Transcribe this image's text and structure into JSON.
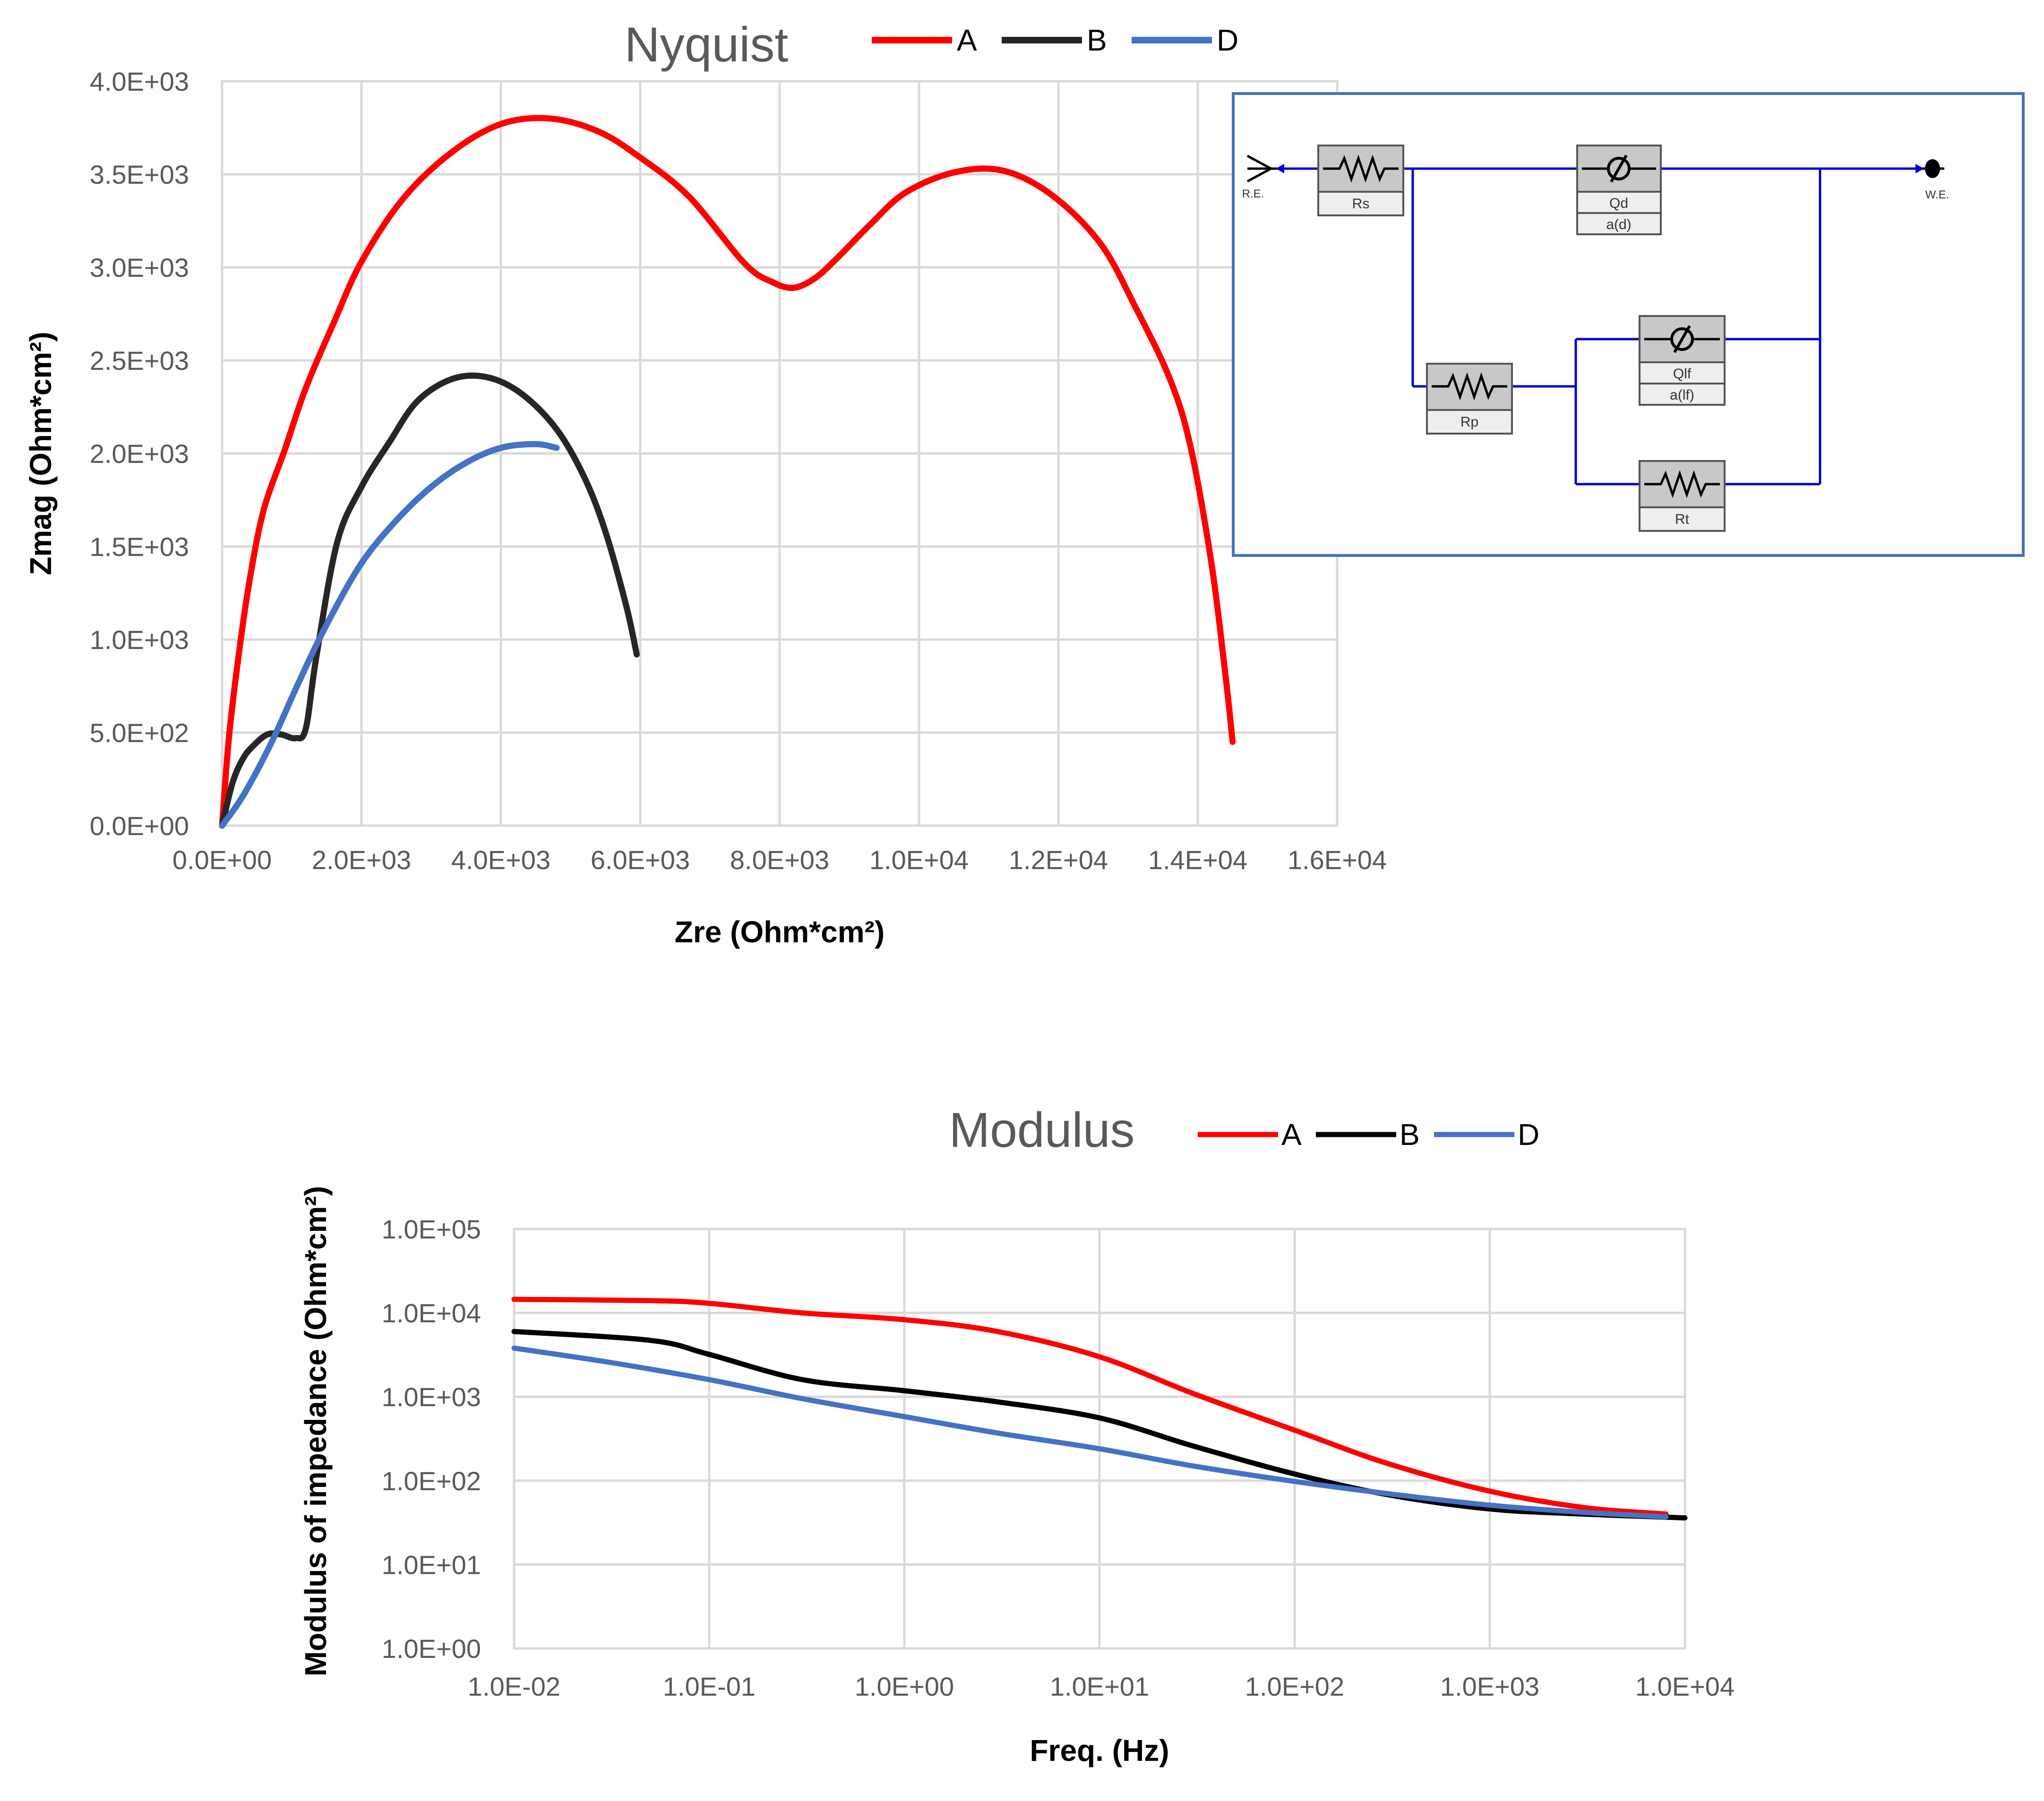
{
  "colors": {
    "A": "#ff0000",
    "B": "#262626",
    "B_modulus": "#000000",
    "D": "#4472c4",
    "circuit_wire": "#0000cc",
    "circuit_frame": "#4472c4"
  },
  "chart_data": [
    {
      "type": "line",
      "title": "Nyquist",
      "xlabel": "Zre (Ohm*cm²)",
      "ylabel": "Zmag (Ohm*cm²)",
      "xlim": [
        0,
        16000
      ],
      "ylim": [
        0,
        4000
      ],
      "x_ticks": [
        0,
        2000,
        4000,
        6000,
        8000,
        10000,
        12000,
        14000,
        16000
      ],
      "y_ticks": [
        0,
        500,
        1000,
        1500,
        2000,
        2500,
        3000,
        3500,
        4000
      ],
      "x_tick_labels": [
        "0.0E+00",
        "2.0E+03",
        "4.0E+03",
        "6.0E+03",
        "8.0E+03",
        "1.0E+04",
        "1.2E+04",
        "1.4E+04",
        "1.6E+04"
      ],
      "y_tick_labels": [
        "0.0E+00",
        "5.0E+02",
        "1.0E+03",
        "1.5E+03",
        "2.0E+03",
        "2.5E+03",
        "3.0E+03",
        "3.5E+03",
        "4.0E+03"
      ],
      "grid": true,
      "legend": "top",
      "series": [
        {
          "name": "A",
          "points": [
            [
              0,
              0
            ],
            [
              100,
              480
            ],
            [
              250,
              950
            ],
            [
              400,
              1330
            ],
            [
              600,
              1700
            ],
            [
              900,
              2020
            ],
            [
              1200,
              2350
            ],
            [
              1600,
              2700
            ],
            [
              2000,
              3030
            ],
            [
              2600,
              3370
            ],
            [
              3300,
              3620
            ],
            [
              4000,
              3770
            ],
            [
              4700,
              3800
            ],
            [
              5400,
              3730
            ],
            [
              6000,
              3590
            ],
            [
              6700,
              3380
            ],
            [
              7500,
              3020
            ],
            [
              7900,
              2920
            ],
            [
              8200,
              2890
            ],
            [
              8500,
              2940
            ],
            [
              8800,
              3040
            ],
            [
              9300,
              3230
            ],
            [
              9800,
              3400
            ],
            [
              10500,
              3510
            ],
            [
              11200,
              3520
            ],
            [
              11900,
              3390
            ],
            [
              12600,
              3130
            ],
            [
              13100,
              2790
            ],
            [
              13600,
              2400
            ],
            [
              13900,
              2030
            ],
            [
              14200,
              1400
            ],
            [
              14400,
              800
            ],
            [
              14500,
              450
            ]
          ]
        },
        {
          "name": "B",
          "points": [
            [
              0,
              0
            ],
            [
              150,
              230
            ],
            [
              300,
              360
            ],
            [
              450,
              430
            ],
            [
              650,
              490
            ],
            [
              850,
              490
            ],
            [
              1050,
              470
            ],
            [
              1200,
              520
            ],
            [
              1350,
              900
            ],
            [
              1650,
              1520
            ],
            [
              2000,
              1820
            ],
            [
              2400,
              2060
            ],
            [
              2800,
              2280
            ],
            [
              3300,
              2400
            ],
            [
              3800,
              2410
            ],
            [
              4300,
              2320
            ],
            [
              4800,
              2130
            ],
            [
              5200,
              1870
            ],
            [
              5500,
              1580
            ],
            [
              5800,
              1180
            ],
            [
              5950,
              920
            ]
          ]
        },
        {
          "name": "D",
          "points": [
            [
              0,
              0
            ],
            [
              300,
              160
            ],
            [
              700,
              440
            ],
            [
              1100,
              770
            ],
            [
              1500,
              1080
            ],
            [
              2000,
              1410
            ],
            [
              2500,
              1640
            ],
            [
              3000,
              1820
            ],
            [
              3500,
              1950
            ],
            [
              4000,
              2030
            ],
            [
              4500,
              2050
            ],
            [
              4800,
              2030
            ]
          ]
        }
      ]
    },
    {
      "type": "line",
      "title": "Modulus",
      "xlabel": "Freq. (Hz)",
      "ylabel": "Modulus of impedance (Ohm*cm²)",
      "x_scale": "log",
      "y_scale": "log",
      "xlim": [
        0.01,
        10000
      ],
      "ylim": [
        1,
        100000
      ],
      "x_ticks": [
        0.01,
        0.1,
        1,
        10,
        100,
        1000,
        10000
      ],
      "y_ticks": [
        1,
        10,
        100,
        1000,
        10000,
        100000
      ],
      "x_tick_labels": [
        "1.0E-02",
        "1.0E-01",
        "1.0E+00",
        "1.0E+01",
        "1.0E+02",
        "1.0E+03",
        "1.0E+04"
      ],
      "y_tick_labels": [
        "1.0E+00",
        "1.0E+01",
        "1.0E+02",
        "1.0E+03",
        "1.0E+04",
        "1.0E+05"
      ],
      "grid": true,
      "legend": "top",
      "series": [
        {
          "name": "A",
          "points": [
            [
              0.01,
              14500
            ],
            [
              0.05,
              14000
            ],
            [
              0.1,
              13000
            ],
            [
              0.3,
              10000
            ],
            [
              1,
              8300
            ],
            [
              3,
              6000
            ],
            [
              10,
              3000
            ],
            [
              30,
              1100
            ],
            [
              100,
              400
            ],
            [
              300,
              160
            ],
            [
              1000,
              75
            ],
            [
              3000,
              48
            ],
            [
              8000,
              40
            ]
          ]
        },
        {
          "name": "B",
          "points": [
            [
              0.01,
              6000
            ],
            [
              0.05,
              4700
            ],
            [
              0.1,
              3200
            ],
            [
              0.3,
              1600
            ],
            [
              1,
              1180
            ],
            [
              3,
              870
            ],
            [
              10,
              560
            ],
            [
              30,
              260
            ],
            [
              100,
              120
            ],
            [
              300,
              68
            ],
            [
              1000,
              46
            ],
            [
              3000,
              40
            ],
            [
              10000,
              36
            ]
          ]
        },
        {
          "name": "D",
          "points": [
            [
              0.01,
              3800
            ],
            [
              0.03,
              2600
            ],
            [
              0.1,
              1600
            ],
            [
              0.3,
              950
            ],
            [
              1,
              580
            ],
            [
              3,
              370
            ],
            [
              10,
              240
            ],
            [
              30,
              150
            ],
            [
              100,
              98
            ],
            [
              300,
              70
            ],
            [
              1000,
              51
            ],
            [
              3000,
              42
            ],
            [
              8000,
              37
            ]
          ]
        }
      ]
    }
  ],
  "circuit": {
    "re_label": "R.E.",
    "we_label": "W.E.",
    "rs_label": "Rs",
    "qd_label": "Qd",
    "ad_label": "a(d)",
    "rp_label": "Rp",
    "qlf_label": "Qlf",
    "alf_label": "a(lf)",
    "rt_label": "Rt"
  }
}
